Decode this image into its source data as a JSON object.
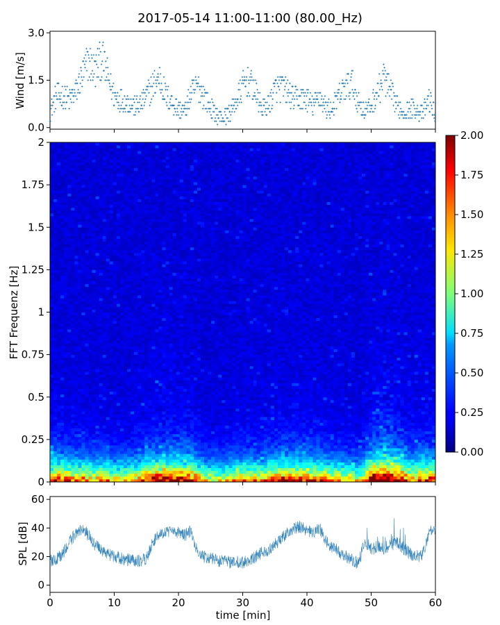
{
  "chart_data": {
    "title": "2017-05-14 11:00-11:00 (80.00_Hz)",
    "x": {
      "label": "time [min]",
      "range": [
        0,
        60
      ],
      "ticks": [
        0,
        10,
        20,
        30,
        40,
        50,
        60
      ],
      "tick_labels": [
        "0",
        "10",
        "20",
        "30",
        "40",
        "50",
        "60"
      ]
    },
    "panels": [
      {
        "name": "wind",
        "type": "scatter",
        "ylabel": "Wind [m/s]",
        "ylim": [
          -0.05,
          3.05
        ],
        "yticks": [
          0.0,
          1.5,
          3.0
        ],
        "ytick_labels": [
          "0.0",
          "1.5",
          "3.0"
        ],
        "color": "#1f77b4",
        "series": {
          "t": [
            0,
            1,
            2,
            3,
            4,
            5,
            6,
            7,
            8,
            9,
            10,
            11,
            12,
            13,
            14,
            15,
            16,
            17,
            18,
            19,
            20,
            21,
            22,
            23,
            24,
            25,
            26,
            27,
            28,
            29,
            30,
            31,
            32,
            33,
            34,
            35,
            36,
            37,
            38,
            39,
            40,
            41,
            42,
            43,
            44,
            45,
            46,
            47,
            48,
            49,
            50,
            51,
            52,
            53,
            54,
            55,
            56,
            57,
            58,
            59,
            60
          ],
          "v": [
            0.5,
            1.0,
            1.0,
            0.9,
            1.1,
            1.6,
            2.1,
            1.8,
            2.2,
            1.6,
            1.0,
            0.9,
            0.8,
            0.7,
            0.7,
            1.0,
            1.3,
            1.6,
            1.0,
            0.8,
            0.6,
            0.5,
            1.1,
            1.3,
            1.0,
            0.6,
            0.4,
            0.3,
            0.5,
            0.8,
            1.3,
            1.5,
            1.1,
            0.6,
            0.7,
            1.2,
            1.3,
            1.1,
            0.9,
            0.9,
            0.9,
            0.7,
            1.0,
            0.6,
            0.6,
            1.0,
            1.3,
            1.4,
            0.8,
            0.5,
            0.7,
            1.1,
            1.6,
            1.1,
            0.7,
            0.5,
            0.6,
            0.6,
            0.4,
            0.9,
            0.4
          ]
        }
      },
      {
        "name": "spectrogram",
        "type": "heatmap",
        "ylabel": "FFT Frequenz [Hz]",
        "ylim": [
          0,
          2
        ],
        "yticks": [
          0,
          0.25,
          0.5,
          0.75,
          1,
          1.25,
          1.5,
          1.75,
          2
        ],
        "ytick_labels": [
          "0",
          "0.25",
          "0.5",
          "0.75",
          "1",
          "1.25",
          "1.5",
          "1.75",
          "2"
        ],
        "colormap": "jet",
        "clim": [
          0,
          2
        ],
        "colorbar_ticks": [
          0,
          0.25,
          0.5,
          0.75,
          1.0,
          1.25,
          1.5,
          1.75,
          2.0
        ],
        "colorbar_labels": [
          "0.00",
          "0.25",
          "0.50",
          "0.75",
          "1.00",
          "1.25",
          "1.50",
          "1.75",
          "2.00"
        ],
        "description_values": {
          "low_freq_energy_by_minute": [
            1.6,
            1.7,
            1.6,
            1.5,
            1.5,
            1.5,
            1.4,
            1.4,
            1.4,
            1.4,
            1.3,
            1.3,
            1.3,
            1.4,
            1.4,
            1.7,
            1.8,
            1.9,
            1.9,
            1.9,
            1.8,
            1.8,
            1.8,
            1.5,
            1.3,
            1.2,
            1.2,
            1.2,
            1.3,
            1.4,
            1.4,
            1.5,
            1.4,
            1.4,
            1.5,
            1.6,
            1.7,
            1.7,
            1.7,
            1.7,
            1.7,
            1.6,
            1.6,
            1.5,
            1.4,
            1.4,
            1.3,
            1.3,
            1.2,
            1.4,
            2.0,
            2.2,
            2.3,
            2.2,
            2.0,
            1.8,
            1.5,
            1.6,
            1.6,
            1.7,
            1.7
          ]
        }
      },
      {
        "name": "spl",
        "type": "line",
        "ylabel": "SPL [dB]",
        "ylim": [
          -5,
          62
        ],
        "yticks": [
          0,
          20,
          40,
          60
        ],
        "ytick_labels": [
          "0",
          "20",
          "40",
          "60"
        ],
        "color": "#1f77b4",
        "series": {
          "t": [
            0,
            1,
            2,
            3,
            4,
            5,
            6,
            7,
            8,
            9,
            10,
            11,
            12,
            13,
            14,
            15,
            16,
            17,
            18,
            19,
            20,
            21,
            22,
            23,
            24,
            25,
            26,
            27,
            28,
            29,
            30,
            31,
            32,
            33,
            34,
            35,
            36,
            37,
            38,
            39,
            40,
            41,
            42,
            43,
            44,
            45,
            46,
            47,
            48,
            49,
            50,
            51,
            52,
            53,
            54,
            55,
            56,
            57,
            58,
            59,
            60
          ],
          "v": [
            17,
            18,
            22,
            30,
            36,
            39,
            35,
            28,
            25,
            22,
            20,
            19,
            18,
            17,
            17,
            18,
            30,
            36,
            38,
            37,
            37,
            35,
            38,
            22,
            20,
            19,
            17,
            17,
            16,
            16,
            16,
            17,
            20,
            23,
            24,
            28,
            33,
            37,
            40,
            41,
            38,
            37,
            40,
            30,
            27,
            23,
            20,
            18,
            15,
            31,
            25,
            27,
            26,
            28,
            30,
            26,
            22,
            20,
            21,
            36,
            40
          ]
        }
      }
    ]
  }
}
